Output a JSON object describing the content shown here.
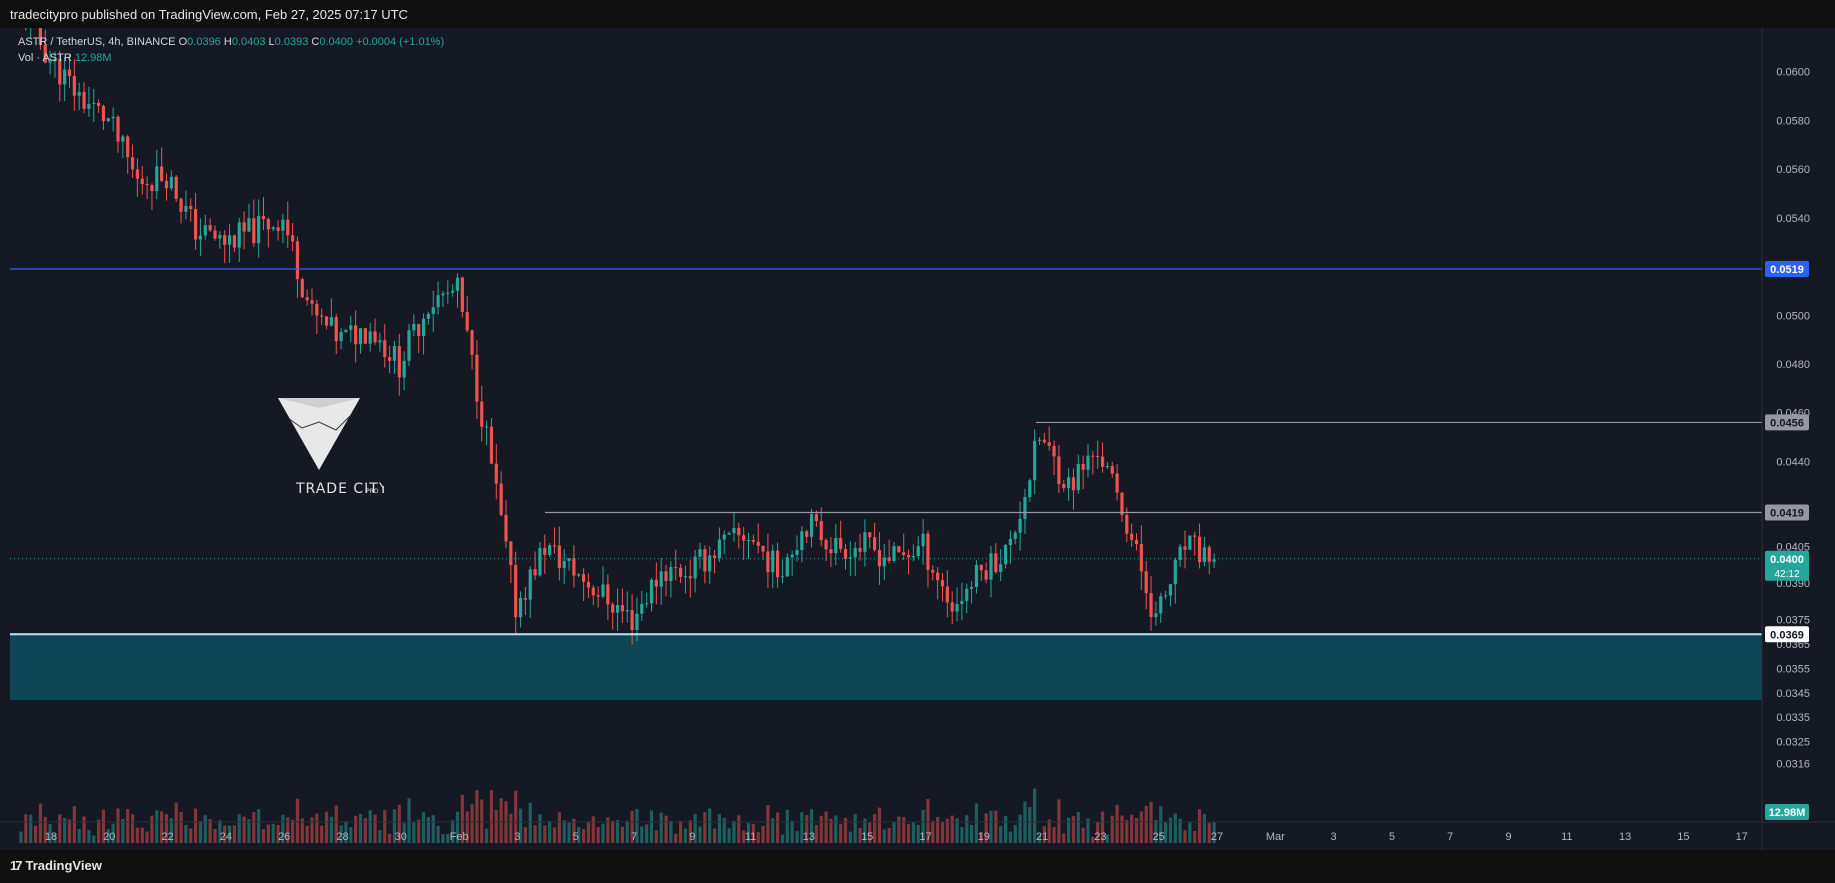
{
  "header": {
    "published_text": "tradecitypro published on TradingView.com, Feb 27, 2025 07:17 UTC"
  },
  "footer": {
    "logo_glyph": "17",
    "logo_text": "TradingView"
  },
  "legend": {
    "symbol_line": "ASTR / TetherUS, 4h, BINANCE",
    "open_label": "O",
    "open_value": "0.0396",
    "high_label": "H",
    "high_value": "0.0403",
    "low_label": "L",
    "low_value": "0.0393",
    "close_label": "C",
    "close_value": "0.0400",
    "change_value": "+0.0004 (+1.01%)",
    "vol_label": "Vol · ASTR",
    "vol_value": "12.98M"
  },
  "watermark": {
    "brand": "TRADE CITY",
    "suffix": "PRO"
  },
  "colors": {
    "background": "#151924",
    "up": "#26a69a",
    "down": "#ef5350",
    "resistance_line": "#2962ff",
    "support_zone": "#0e5566",
    "support_line": "#b2ebf2",
    "level_line": "#9598a1"
  },
  "chart_data": {
    "type": "candlestick",
    "symbol": "ASTR / TetherUS",
    "interval": "4h",
    "exchange": "BINANCE",
    "ylim": [
      0.031,
      0.062
    ],
    "y_ticks": [
      "0.0600",
      "0.0580",
      "0.0560",
      "0.0540",
      "0.0500",
      "0.0480",
      "0.0460",
      "0.0440",
      "0.0405",
      "0.0390",
      "0.0375",
      "0.0365",
      "0.0355",
      "0.0345",
      "0.0335",
      "0.0325",
      "0.0316"
    ],
    "x_ticks": [
      "18",
      "20",
      "22",
      "24",
      "26",
      "28",
      "30",
      "Feb",
      "3",
      "5",
      "7",
      "9",
      "11",
      "13",
      "15",
      "17",
      "19",
      "21",
      "23",
      "25",
      "27",
      "Mar",
      "3",
      "5",
      "7",
      "9",
      "11",
      "13",
      "15",
      "17"
    ],
    "price_path": [
      [
        "Jan 17",
        0.0625
      ],
      [
        "Jan 18",
        0.0605
      ],
      [
        "Jan 19",
        0.059
      ],
      [
        "Jan 20",
        0.058
      ],
      [
        "Jan 21",
        0.0555
      ],
      [
        "Jan 22",
        0.0558
      ],
      [
        "Jan 23",
        0.0535
      ],
      [
        "Jan 24",
        0.053
      ],
      [
        "Jan 25",
        0.0535
      ],
      [
        "Jan 26",
        0.054
      ],
      [
        "Jan 27",
        0.05
      ],
      [
        "Jan 28",
        0.049
      ],
      [
        "Jan 29",
        0.0495
      ],
      [
        "Jan 30",
        0.048
      ],
      [
        "Jan 31",
        0.0505
      ],
      [
        "Feb 1",
        0.051
      ],
      [
        "Feb 2",
        0.045
      ],
      [
        "Feb 3",
        0.038
      ],
      [
        "Feb 4",
        0.0405
      ],
      [
        "Feb 5",
        0.0395
      ],
      [
        "Feb 6",
        0.0385
      ],
      [
        "Feb 7",
        0.0375
      ],
      [
        "Feb 8",
        0.0395
      ],
      [
        "Feb 9",
        0.0395
      ],
      [
        "Feb 10",
        0.0405
      ],
      [
        "Feb 11",
        0.041
      ],
      [
        "Feb 12",
        0.0395
      ],
      [
        "Feb 13",
        0.0415
      ],
      [
        "Feb 14",
        0.0405
      ],
      [
        "Feb 15",
        0.0405
      ],
      [
        "Feb 16",
        0.04
      ],
      [
        "Feb 17",
        0.0405
      ],
      [
        "Feb 18",
        0.038
      ],
      [
        "Feb 19",
        0.0395
      ],
      [
        "Feb 20",
        0.0405
      ],
      [
        "Feb 21",
        0.045
      ],
      [
        "Feb 22",
        0.043
      ],
      [
        "Feb 23",
        0.0445
      ],
      [
        "Feb 24",
        0.0415
      ],
      [
        "Feb 25",
        0.0375
      ],
      [
        "Feb 26",
        0.0405
      ],
      [
        "Feb 27",
        0.04
      ]
    ],
    "horizontal_levels": [
      {
        "label": "0.0519",
        "value": 0.0519,
        "style": "resistance"
      },
      {
        "label": "0.0456",
        "value": 0.0456,
        "style": "level"
      },
      {
        "label": "0.0419",
        "value": 0.0419,
        "style": "level"
      },
      {
        "label": "0.0369",
        "value": 0.0369,
        "style": "support"
      }
    ],
    "support_zone": [
      0.0342,
      0.0369
    ],
    "current_price": {
      "label": "0.0400",
      "countdown": "42:12",
      "value": 0.04
    },
    "volume_label": "12.98M"
  }
}
